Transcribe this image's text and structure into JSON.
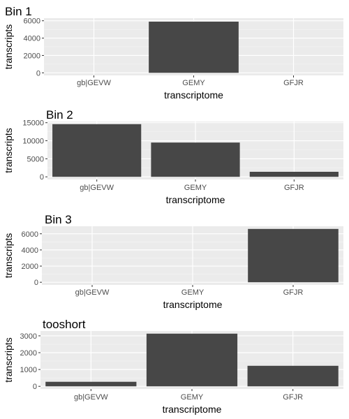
{
  "chart_data": [
    {
      "type": "bar",
      "title": "Bin 1",
      "xlabel": "transcriptome",
      "ylabel": "transcripts",
      "categories": [
        "gb|GEVW",
        "GEMY",
        "GFJR"
      ],
      "values": [
        0,
        5900,
        0
      ],
      "ylim": [
        -300,
        6300
      ],
      "yticks": [
        0,
        2000,
        4000,
        6000
      ],
      "grid": true,
      "background": "#ebebeb",
      "bar_color": "#474747"
    },
    {
      "type": "bar",
      "title": "Bin 2",
      "xlabel": "transcriptome",
      "ylabel": "transcripts",
      "categories": [
        "gb|GEVW",
        "GEMY",
        "GFJR"
      ],
      "values": [
        14600,
        9500,
        1400
      ],
      "ylim": [
        -730,
        15330
      ],
      "yticks": [
        0,
        5000,
        10000,
        15000
      ],
      "grid": true,
      "background": "#ebebeb",
      "bar_color": "#474747"
    },
    {
      "type": "bar",
      "title": "Bin 3",
      "xlabel": "transcriptome",
      "ylabel": "transcripts",
      "categories": [
        "gb|GEVW",
        "GEMY",
        "GFJR"
      ],
      "values": [
        0,
        0,
        6600
      ],
      "ylim": [
        -330,
        6930
      ],
      "yticks": [
        0,
        2000,
        4000,
        6000
      ],
      "grid": true,
      "background": "#ebebeb",
      "bar_color": "#474747"
    },
    {
      "type": "bar",
      "title": "tooshort",
      "xlabel": "transcriptome",
      "ylabel": "transcripts",
      "categories": [
        "gb|GEVW",
        "GEMY",
        "GFJR"
      ],
      "values": [
        270,
        3130,
        1220
      ],
      "ylim": [
        -157,
        3287
      ],
      "yticks": [
        0,
        1000,
        2000,
        3000
      ],
      "grid": true,
      "background": "#ebebeb",
      "bar_color": "#474747"
    }
  ]
}
